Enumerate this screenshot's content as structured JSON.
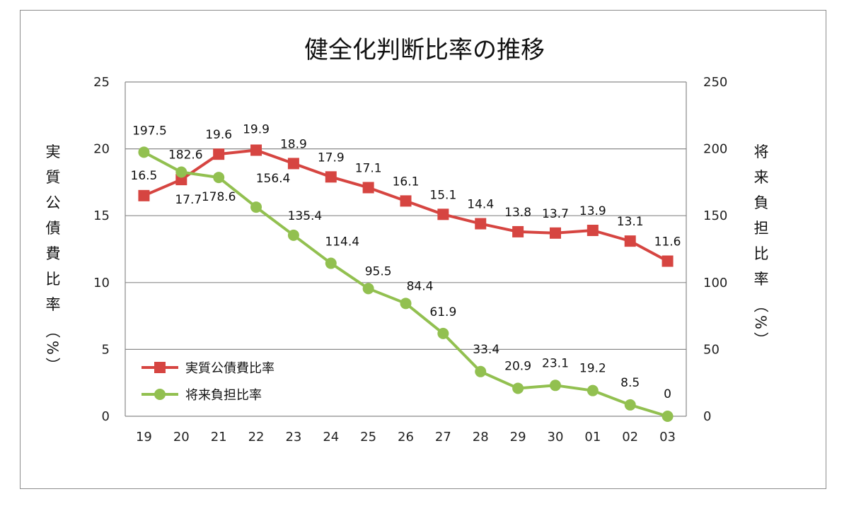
{
  "chart_data": {
    "type": "line",
    "title": "健全化判断比率の推移",
    "categories": [
      "19",
      "20",
      "21",
      "22",
      "23",
      "24",
      "25",
      "26",
      "27",
      "28",
      "29",
      "30",
      "01",
      "02",
      "03"
    ],
    "y_left": {
      "label": "実質公債費比率（%）",
      "range": [
        0,
        25
      ],
      "ticks": [
        "0",
        "5",
        "10",
        "15",
        "20",
        "25"
      ]
    },
    "y_right": {
      "label": "将来負担比率（%）",
      "range": [
        0,
        250
      ],
      "ticks": [
        "0",
        "50",
        "100",
        "150",
        "200",
        "250"
      ]
    },
    "grid": true,
    "legend_position": "bottom-left",
    "series": [
      {
        "name": "実質公債費比率",
        "axis": "left",
        "color": "#d64541",
        "marker": "square",
        "values": [
          16.5,
          17.7,
          19.6,
          19.9,
          18.9,
          17.9,
          17.1,
          16.1,
          15.1,
          14.4,
          13.8,
          13.7,
          13.9,
          13.1,
          11.6
        ],
        "labels": [
          "16.5",
          "17.7",
          "19.6",
          "19.9",
          "18.9",
          "17.9",
          "17.1",
          "16.1",
          "15.1",
          "14.4",
          "13.8",
          "13.7",
          "13.9",
          "13.1",
          "11.6"
        ]
      },
      {
        "name": "将来負担比率",
        "axis": "right",
        "color": "#92c050",
        "marker": "circle",
        "values": [
          197.5,
          182.6,
          178.6,
          156.4,
          135.4,
          114.4,
          95.5,
          84.4,
          61.9,
          33.4,
          20.9,
          23.1,
          19.2,
          8.5,
          0
        ],
        "labels": [
          "197.5",
          "182.6",
          "178.6",
          "156.4",
          "135.4",
          "114.4",
          "95.5",
          "84.4",
          "61.9",
          "33.4",
          "20.9",
          "23.1",
          "19.2",
          "8.5",
          "0"
        ]
      }
    ]
  }
}
